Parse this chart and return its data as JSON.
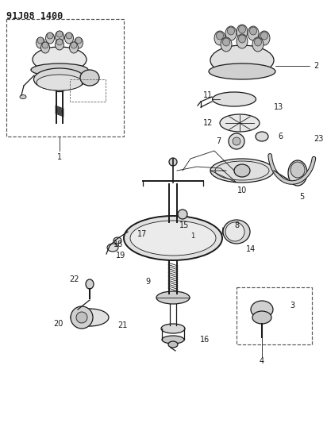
{
  "title": "91J08 1400",
  "bg_color": "#ffffff",
  "title_fontsize": 8.5,
  "lc": "#1a1a1a",
  "fig_w": 4.12,
  "fig_h": 5.33,
  "dpi": 100
}
